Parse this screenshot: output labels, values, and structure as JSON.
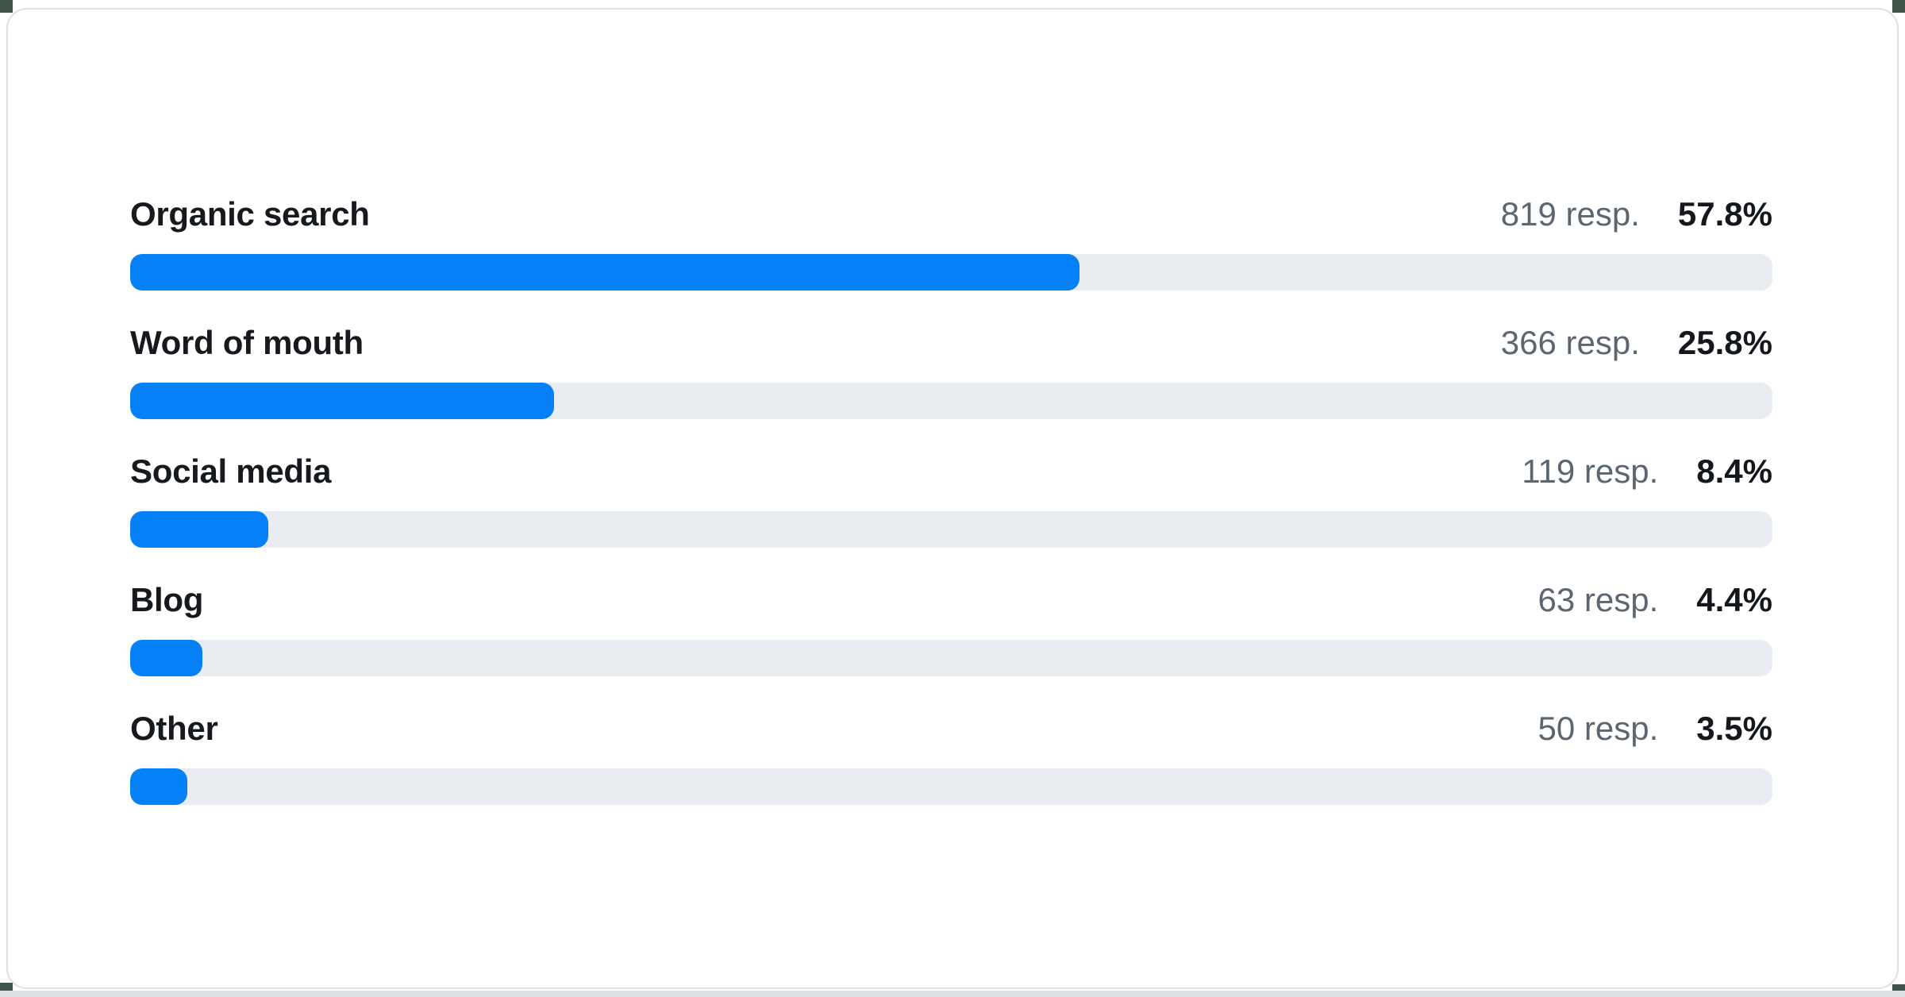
{
  "chart_data": {
    "type": "bar",
    "orientation": "horizontal",
    "categories": [
      "Organic search",
      "Word of mouth",
      "Social media",
      "Blog",
      "Other"
    ],
    "series": [
      {
        "name": "Responses",
        "values": [
          819,
          366,
          119,
          63,
          50
        ]
      }
    ],
    "percent_values": [
      57.8,
      25.8,
      8.4,
      4.4,
      3.5
    ],
    "value_labels": [
      "819 resp.",
      "366 resp.",
      "119 resp.",
      "63 resp.",
      "50 resp."
    ],
    "percent_labels": [
      "57.8%",
      "25.8%",
      "8.4%",
      "4.4%",
      "3.5%"
    ],
    "xlim": [
      0,
      100
    ],
    "grid": false,
    "legend": false,
    "title": ""
  },
  "rows": [
    {
      "label": "Organic search",
      "responses": "819 resp.",
      "percent": "57.8%",
      "percent_value": 57.8
    },
    {
      "label": "Word of mouth",
      "responses": "366 resp.",
      "percent": "25.8%",
      "percent_value": 25.8
    },
    {
      "label": "Social media",
      "responses": "119 resp.",
      "percent": "8.4%",
      "percent_value": 8.4
    },
    {
      "label": "Blog",
      "responses": "63 resp.",
      "percent": "4.4%",
      "percent_value": 4.4
    },
    {
      "label": "Other",
      "responses": "50 resp.",
      "percent": "3.5%",
      "percent_value": 3.5
    }
  ],
  "colors": {
    "bar_fill": "#0680f7",
    "bar_track": "#e9edf2",
    "label_text": "#16191d",
    "responses_text": "#5b6671",
    "percent_text": "#14181c",
    "card_background": "#ffffff",
    "card_border": "#dde2e6",
    "page_bottom_strip": "#dbe0e4",
    "corner_artifact": "#3e5449"
  }
}
